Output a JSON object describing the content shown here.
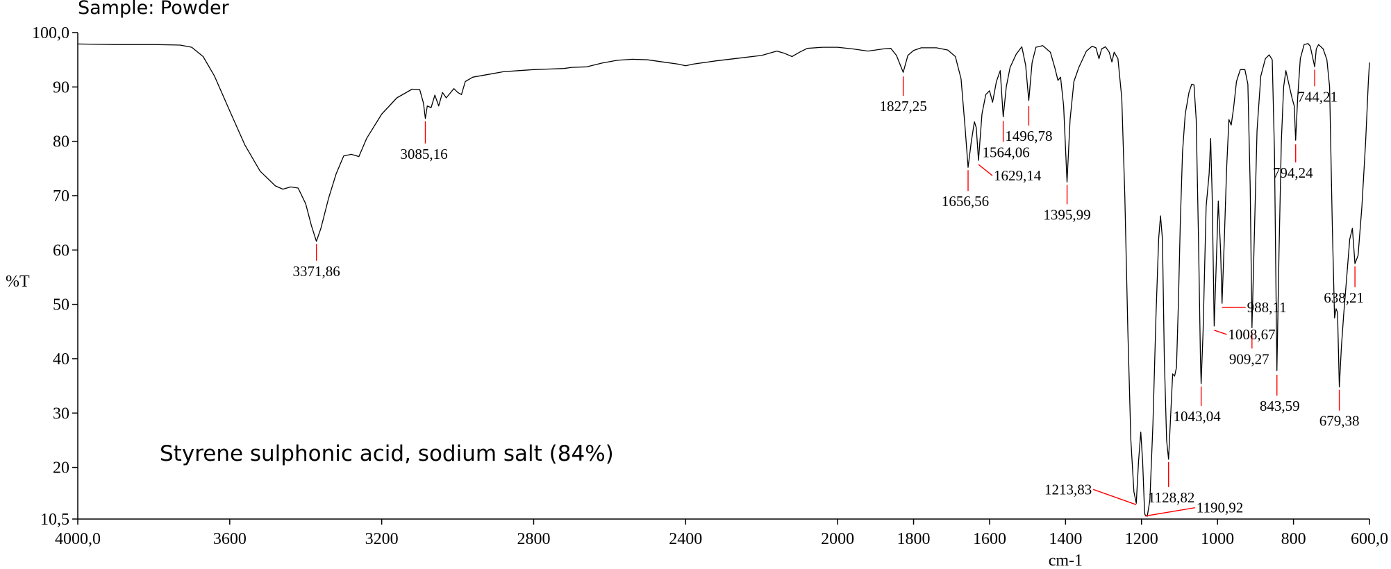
{
  "chart_data": {
    "type": "line",
    "sample_label": "Sample: Powder",
    "annotation": "Styrene sulphonic acid, sodium salt (84%)",
    "xlabel": "cm-1",
    "ylabel": "%T",
    "xlim": [
      4000,
      600
    ],
    "ylim": [
      10.5,
      100
    ],
    "x_reversed": true,
    "grid": false,
    "legend": "none",
    "line_color": "#000000",
    "peak_marker_color": "#ff0000",
    "x_ticks": [
      {
        "value": 4000,
        "label": "4000,0"
      },
      {
        "value": 3600,
        "label": "3600"
      },
      {
        "value": 3200,
        "label": "3200"
      },
      {
        "value": 2800,
        "label": "2800"
      },
      {
        "value": 2400,
        "label": "2400"
      },
      {
        "value": 2000,
        "label": "2000"
      },
      {
        "value": 1800,
        "label": "1800"
      },
      {
        "value": 1600,
        "label": "1600"
      },
      {
        "value": 1400,
        "label": "1400"
      },
      {
        "value": 1200,
        "label": "1200"
      },
      {
        "value": 1000,
        "label": "1000"
      },
      {
        "value": 800,
        "label": "800"
      },
      {
        "value": 600,
        "label": "600,0"
      }
    ],
    "y_ticks": [
      {
        "value": 100,
        "label": "100,0"
      },
      {
        "value": 90,
        "label": "90"
      },
      {
        "value": 80,
        "label": "80"
      },
      {
        "value": 70,
        "label": "70"
      },
      {
        "value": 60,
        "label": "60"
      },
      {
        "value": 50,
        "label": "50"
      },
      {
        "value": 40,
        "label": "40"
      },
      {
        "value": 30,
        "label": "30"
      },
      {
        "value": 20,
        "label": "20"
      },
      {
        "value": 10.5,
        "label": "10,5"
      }
    ],
    "spectrum": [
      [
        4000,
        97.9
      ],
      [
        3900,
        97.8
      ],
      [
        3800,
        97.8
      ],
      [
        3730,
        97.7
      ],
      [
        3700,
        97.3
      ],
      [
        3670,
        95.6
      ],
      [
        3640,
        92
      ],
      [
        3600,
        85.6
      ],
      [
        3560,
        79.3
      ],
      [
        3520,
        74.5
      ],
      [
        3480,
        71.8
      ],
      [
        3460,
        71.2
      ],
      [
        3440,
        71.6
      ],
      [
        3420,
        71.4
      ],
      [
        3400,
        68.5
      ],
      [
        3385,
        64.5
      ],
      [
        3371.86,
        61.6
      ],
      [
        3360,
        64
      ],
      [
        3340,
        69.5
      ],
      [
        3320,
        74
      ],
      [
        3300,
        77.3
      ],
      [
        3280,
        77.6
      ],
      [
        3260,
        77.2
      ],
      [
        3240,
        80.5
      ],
      [
        3200,
        85
      ],
      [
        3160,
        88
      ],
      [
        3120,
        89.6
      ],
      [
        3100,
        89.5
      ],
      [
        3090,
        87
      ],
      [
        3085.16,
        84.2
      ],
      [
        3080,
        86.5
      ],
      [
        3070,
        86.2
      ],
      [
        3060,
        88.5
      ],
      [
        3050,
        86.5
      ],
      [
        3040,
        89
      ],
      [
        3030,
        88
      ],
      [
        3010,
        89.7
      ],
      [
        3000,
        89
      ],
      [
        2990,
        88.6
      ],
      [
        2980,
        91
      ],
      [
        2960,
        91.8
      ],
      [
        2920,
        92.3
      ],
      [
        2880,
        92.8
      ],
      [
        2840,
        93
      ],
      [
        2800,
        93.2
      ],
      [
        2760,
        93.3
      ],
      [
        2720,
        93.4
      ],
      [
        2700,
        93.6
      ],
      [
        2660,
        93.7
      ],
      [
        2620,
        94.4
      ],
      [
        2580,
        94.9
      ],
      [
        2540,
        95.1
      ],
      [
        2500,
        95
      ],
      [
        2460,
        94.6
      ],
      [
        2420,
        94.2
      ],
      [
        2400,
        93.9
      ],
      [
        2380,
        94.2
      ],
      [
        2320,
        94.8
      ],
      [
        2260,
        95.3
      ],
      [
        2200,
        95.8
      ],
      [
        2160,
        96.6
      ],
      [
        2140,
        96.2
      ],
      [
        2120,
        95.6
      ],
      [
        2100,
        96.4
      ],
      [
        2080,
        97.1
      ],
      [
        2040,
        97.3
      ],
      [
        2000,
        97.3
      ],
      [
        1960,
        97
      ],
      [
        1920,
        96.6
      ],
      [
        1880,
        97
      ],
      [
        1860,
        97.1
      ],
      [
        1845,
        95.8
      ],
      [
        1827.25,
        92.7
      ],
      [
        1815,
        95.8
      ],
      [
        1800,
        96.7
      ],
      [
        1780,
        97.2
      ],
      [
        1740,
        97.2
      ],
      [
        1710,
        96.8
      ],
      [
        1690,
        95.6
      ],
      [
        1675,
        91.5
      ],
      [
        1665,
        83
      ],
      [
        1656.56,
        75.2
      ],
      [
        1648,
        80
      ],
      [
        1640,
        83.6
      ],
      [
        1635,
        82.5
      ],
      [
        1629.14,
        76.5
      ],
      [
        1620,
        85
      ],
      [
        1610,
        88.6
      ],
      [
        1600,
        89.3
      ],
      [
        1592,
        87.2
      ],
      [
        1582,
        91
      ],
      [
        1572,
        93
      ],
      [
        1564.06,
        84.5
      ],
      [
        1556,
        90
      ],
      [
        1546,
        93.6
      ],
      [
        1530,
        96
      ],
      [
        1515,
        97.4
      ],
      [
        1505,
        94
      ],
      [
        1496.78,
        87.5
      ],
      [
        1488,
        94.5
      ],
      [
        1478,
        97.3
      ],
      [
        1460,
        97.6
      ],
      [
        1440,
        96.4
      ],
      [
        1428,
        93.5
      ],
      [
        1420,
        91.2
      ],
      [
        1413,
        91.8
      ],
      [
        1405,
        86.5
      ],
      [
        1395.99,
        72.5
      ],
      [
        1388,
        84
      ],
      [
        1378,
        91
      ],
      [
        1365,
        93.6
      ],
      [
        1345,
        96.6
      ],
      [
        1330,
        97.5
      ],
      [
        1320,
        97.2
      ],
      [
        1312,
        95.2
      ],
      [
        1305,
        97
      ],
      [
        1295,
        97.4
      ],
      [
        1285,
        96.4
      ],
      [
        1278,
        94.6
      ],
      [
        1272,
        96.4
      ],
      [
        1262,
        95.2
      ],
      [
        1252,
        88
      ],
      [
        1244,
        70
      ],
      [
        1236,
        45
      ],
      [
        1228,
        25
      ],
      [
        1220,
        15.5
      ],
      [
        1213.83,
        13.4
      ],
      [
        1208,
        21
      ],
      [
        1202,
        26.5
      ],
      [
        1197,
        21
      ],
      [
        1192,
        12
      ],
      [
        1190.92,
        11.3
      ],
      [
        1185,
        11
      ],
      [
        1178,
        14
      ],
      [
        1170,
        28
      ],
      [
        1162,
        48
      ],
      [
        1155,
        62
      ],
      [
        1150,
        66.3
      ],
      [
        1145,
        62
      ],
      [
        1140,
        40
      ],
      [
        1134,
        25
      ],
      [
        1128.82,
        21.5
      ],
      [
        1123,
        30
      ],
      [
        1118,
        37.2
      ],
      [
        1113,
        36.8
      ],
      [
        1108,
        38.4
      ],
      [
        1103,
        50
      ],
      [
        1098,
        65
      ],
      [
        1092,
        78
      ],
      [
        1085,
        85
      ],
      [
        1075,
        89
      ],
      [
        1068,
        90.5
      ],
      [
        1062,
        90.4
      ],
      [
        1056,
        84
      ],
      [
        1050,
        62
      ],
      [
        1045,
        40
      ],
      [
        1043.04,
        35.4
      ],
      [
        1038,
        45
      ],
      [
        1030,
        68
      ],
      [
        1022,
        74
      ],
      [
        1018,
        80.5
      ],
      [
        1014,
        70
      ],
      [
        1010,
        52
      ],
      [
        1008.67,
        46
      ],
      [
        1004,
        56
      ],
      [
        998,
        69
      ],
      [
        992,
        60
      ],
      [
        988.11,
        50.2
      ],
      [
        982,
        62
      ],
      [
        976,
        75
      ],
      [
        970,
        84
      ],
      [
        964,
        83
      ],
      [
        958,
        86
      ],
      [
        950,
        91
      ],
      [
        940,
        93.2
      ],
      [
        928,
        93.2
      ],
      [
        920,
        90.5
      ],
      [
        914,
        72
      ],
      [
        909.27,
        45.7
      ],
      [
        904,
        60
      ],
      [
        896,
        82
      ],
      [
        886,
        92
      ],
      [
        874,
        95.2
      ],
      [
        864,
        95.9
      ],
      [
        856,
        95
      ],
      [
        850,
        78
      ],
      [
        843.59,
        37.8
      ],
      [
        838,
        60
      ],
      [
        832,
        80
      ],
      [
        826,
        90
      ],
      [
        820,
        93
      ],
      [
        812,
        90.5
      ],
      [
        804,
        88
      ],
      [
        798,
        86.5
      ],
      [
        794.24,
        80.2
      ],
      [
        789,
        88
      ],
      [
        782,
        95.2
      ],
      [
        772,
        97.8
      ],
      [
        762,
        98
      ],
      [
        756,
        97.5
      ],
      [
        744.21,
        93.7
      ],
      [
        740,
        97
      ],
      [
        734,
        97.8
      ],
      [
        722,
        97
      ],
      [
        712,
        95
      ],
      [
        705,
        90
      ],
      [
        698,
        65
      ],
      [
        692,
        47.5
      ],
      [
        688,
        49.2
      ],
      [
        684,
        48.5
      ],
      [
        679.38,
        34.8
      ],
      [
        674,
        42
      ],
      [
        668,
        48
      ],
      [
        660,
        55
      ],
      [
        652,
        62
      ],
      [
        645,
        64
      ],
      [
        638.21,
        57.5
      ],
      [
        630,
        59
      ],
      [
        620,
        68
      ],
      [
        610,
        80
      ],
      [
        603,
        91
      ],
      [
        600,
        94.5
      ]
    ],
    "peaks": [
      {
        "x": 3371.86,
        "label": "3371,86"
      },
      {
        "x": 3085.16,
        "label": "3085,16"
      },
      {
        "x": 1827.25,
        "label": "1827,25"
      },
      {
        "x": 1656.56,
        "label": "1656,56"
      },
      {
        "x": 1629.14,
        "label": "1629,14"
      },
      {
        "x": 1564.06,
        "label": "1564,06"
      },
      {
        "x": 1496.78,
        "label": "1496,78"
      },
      {
        "x": 1395.99,
        "label": "1395,99"
      },
      {
        "x": 1213.83,
        "label": "1213,83"
      },
      {
        "x": 1190.92,
        "label": "1190,92"
      },
      {
        "x": 1128.82,
        "label": "1128,82"
      },
      {
        "x": 1043.04,
        "label": "1043,04"
      },
      {
        "x": 1008.67,
        "label": "1008,67"
      },
      {
        "x": 988.11,
        "label": "988,11"
      },
      {
        "x": 909.27,
        "label": "909,27"
      },
      {
        "x": 843.59,
        "label": "843,59"
      },
      {
        "x": 794.24,
        "label": "794,24"
      },
      {
        "x": 744.21,
        "label": "744,21"
      },
      {
        "x": 679.38,
        "label": "679,38"
      },
      {
        "x": 638.21,
        "label": "638,21"
      }
    ]
  }
}
